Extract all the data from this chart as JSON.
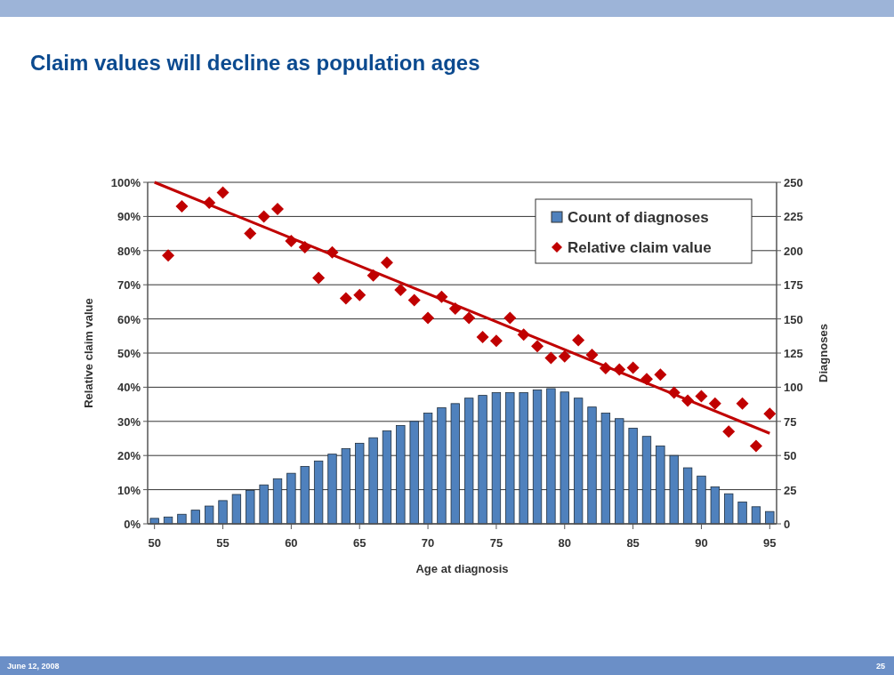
{
  "chart_data": {
    "type": "bar",
    "title": "Claim values will decline as population ages",
    "xlabel": "Age at diagnosis",
    "ylabel": "Relative claim value",
    "y2label": "Diagnoses",
    "xlim": [
      49.5,
      95.5
    ],
    "xticks": [
      50,
      55,
      60,
      65,
      70,
      75,
      80,
      85,
      90,
      95
    ],
    "ylim": [
      0,
      100
    ],
    "yticks": [
      {
        "value": 0,
        "label": "0%"
      },
      {
        "value": 10,
        "label": "10%"
      },
      {
        "value": 20,
        "label": "20%"
      },
      {
        "value": 30,
        "label": "30%"
      },
      {
        "value": 40,
        "label": "40%"
      },
      {
        "value": 50,
        "label": "50%"
      },
      {
        "value": 60,
        "label": "60%"
      },
      {
        "value": 70,
        "label": "70%"
      },
      {
        "value": 80,
        "label": "80%"
      },
      {
        "value": 90,
        "label": "90%"
      },
      {
        "value": 100,
        "label": "100%"
      }
    ],
    "y2lim": [
      0,
      250
    ],
    "y2ticks": [
      0,
      25,
      50,
      75,
      100,
      125,
      150,
      175,
      200,
      225,
      250
    ],
    "grid": "y",
    "legend": "top right",
    "annotations": [
      "June 12, 2008",
      "25"
    ],
    "series": [
      {
        "axis": "y2",
        "name": "Count of diagnoses",
        "color": "#4f81bd",
        "x": [
          50,
          51,
          52,
          53,
          54,
          55,
          56,
          57,
          58,
          59,
          60,
          61,
          62,
          63,
          64,
          65,
          66,
          67,
          68,
          69,
          70,
          71,
          72,
          73,
          74,
          75,
          76,
          77,
          78,
          79,
          80,
          81,
          82,
          83,
          84,
          85,
          86,
          87,
          88,
          89,
          90,
          91,
          92,
          93,
          94,
          95
        ],
        "values": [
          4,
          5,
          7,
          10,
          13,
          17,
          21.5,
          24.5,
          28.5,
          33,
          37,
          42,
          46,
          51,
          55,
          59,
          63,
          68,
          72,
          75,
          81,
          85,
          88,
          92,
          94,
          96,
          96,
          96,
          98,
          99,
          96.5,
          92,
          85.5,
          81,
          77,
          70,
          64,
          57,
          50,
          41,
          35,
          27,
          22,
          16,
          12.5,
          9
        ]
      },
      {
        "type": "scatter",
        "marker": "diamond",
        "name": "Relative claim value",
        "color": "#c00000",
        "x": [
          51,
          52,
          54,
          55,
          57,
          58,
          59,
          60,
          61,
          62,
          63,
          64,
          65,
          66,
          67,
          68,
          69,
          70,
          71,
          72,
          73,
          74,
          75,
          76,
          77,
          78,
          79,
          80,
          81,
          82,
          83,
          84,
          85,
          86,
          87,
          88,
          89,
          90,
          91,
          92,
          93,
          94,
          95
        ],
        "values": [
          78.6,
          93,
          94,
          97,
          85,
          90,
          92.2,
          82.8,
          81,
          72,
          79.5,
          66,
          67,
          72.7,
          76.5,
          68.5,
          65.5,
          60.3,
          66.5,
          63,
          60.3,
          54.7,
          53.6,
          60.3,
          55.4,
          52,
          48.6,
          49,
          53.8,
          49.5,
          45.6,
          45.2,
          45.7,
          42.4,
          43.7,
          38.4,
          36.1,
          37.4,
          35.2,
          27,
          35.2,
          22.8,
          32.2
        ]
      },
      {
        "type": "line",
        "color": "#c00000",
        "x": [
          50,
          95
        ],
        "values": [
          100,
          26.5
        ]
      }
    ]
  }
}
